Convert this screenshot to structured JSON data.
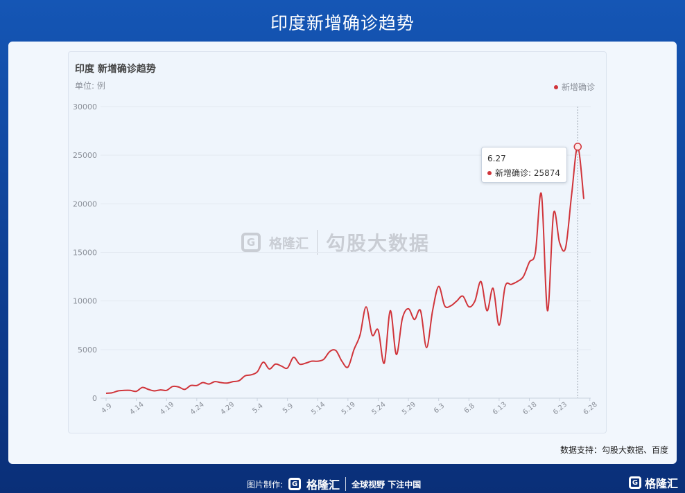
{
  "header": {
    "title": "印度新增确诊趋势"
  },
  "chart_data": {
    "type": "line",
    "title": "印度 新增确诊趋势",
    "unit_label": "单位: 例",
    "legend": "新增确诊",
    "legend_position": "top-right",
    "color": "#d0343a",
    "ylim": [
      0,
      30000
    ],
    "yticks": [
      0,
      5000,
      10000,
      15000,
      20000,
      25000,
      30000
    ],
    "x_tick_labels": [
      "4.9",
      "4.14",
      "4.19",
      "4.24",
      "4.29",
      "5.4",
      "5.9",
      "5.14",
      "5.19",
      "5.24",
      "5.29",
      "6.3",
      "6.8",
      "6.13",
      "6.18",
      "6.23",
      "6.28"
    ],
    "x_tick_positions_day": [
      0,
      5,
      10,
      15,
      20,
      25,
      30,
      35,
      40,
      45,
      50,
      55,
      60,
      65,
      70,
      75,
      80
    ],
    "series": [
      {
        "name": "新增确诊",
        "values": [
          500,
          550,
          750,
          800,
          800,
          700,
          1100,
          900,
          750,
          850,
          800,
          1200,
          1150,
          900,
          1300,
          1300,
          1600,
          1450,
          1700,
          1600,
          1550,
          1700,
          1800,
          2300,
          2400,
          2700,
          3700,
          3000,
          3500,
          3300,
          3100,
          4200,
          3500,
          3600,
          3800,
          3800,
          4000,
          4800,
          4900,
          3800,
          3200,
          5000,
          6500,
          9400,
          6500,
          7000,
          3600,
          9000,
          4500,
          8200,
          9200,
          8100,
          9000,
          5200,
          9000,
          11500,
          9500,
          9500,
          10000,
          10500,
          9400,
          10000,
          12000,
          9000,
          11300,
          7500,
          11500,
          11700,
          12000,
          12500,
          14000,
          15000,
          21000,
          9000,
          19000,
          16000,
          15500,
          21000,
          25874,
          20500
        ]
      }
    ],
    "tooltip": {
      "x": "6.27",
      "label": "新增确诊",
      "value": "25874"
    }
  },
  "tooltip_text": {
    "x": "6.27",
    "line": "新增确诊: 25874"
  },
  "watermark": {
    "brand": "格隆汇",
    "text": "勾股大数据"
  },
  "source": "数据支持：勾股大数据、百度",
  "footer": {
    "credit_label": "图片制作:",
    "brand": "格隆汇",
    "slogan": "全球视野 下注中国",
    "corner_brand": "格隆汇"
  }
}
